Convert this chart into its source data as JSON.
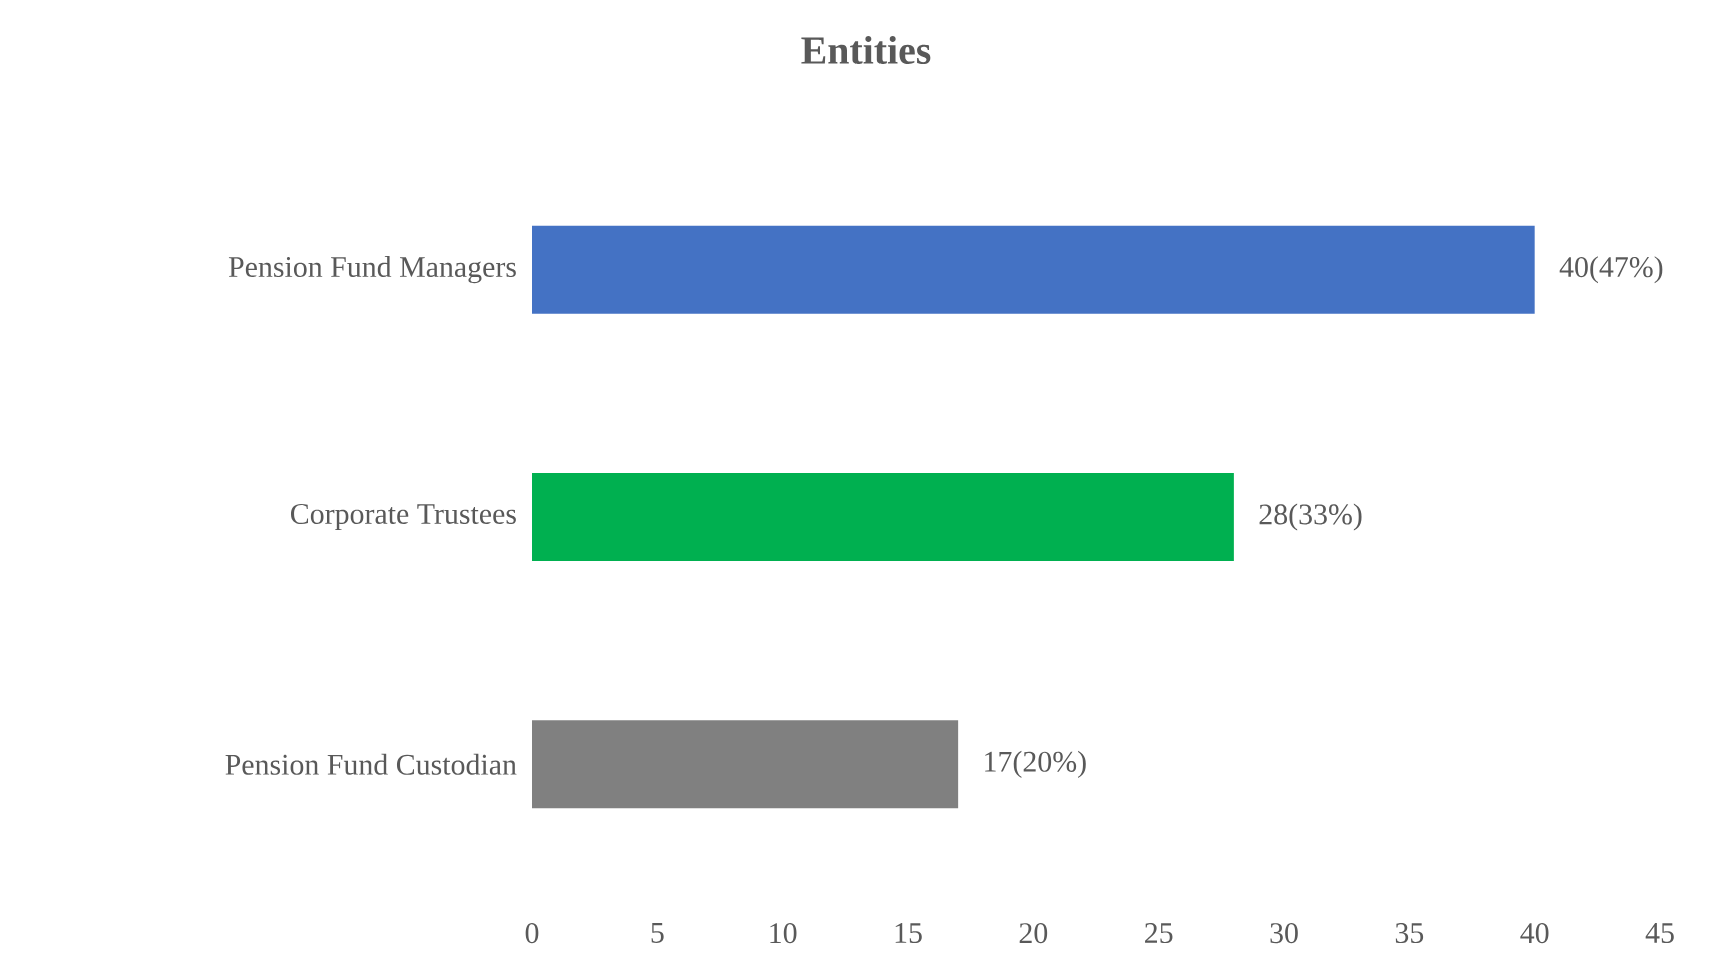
{
  "chart_data": {
    "type": "bar",
    "orientation": "horizontal",
    "title": "Entities",
    "categories": [
      "Pension Fund Managers",
      "Corporate Trustees",
      "Pension Fund Custodian"
    ],
    "values": [
      40,
      28,
      17
    ],
    "colors": [
      "#4472c4",
      "#00b050",
      "#808080"
    ],
    "value_labels": [
      "40(47%)",
      "28(33%)",
      "17(20%)"
    ],
    "xlim": [
      0,
      45
    ],
    "xticks": [
      0,
      5,
      10,
      15,
      20,
      25,
      30,
      35,
      40,
      45
    ]
  }
}
